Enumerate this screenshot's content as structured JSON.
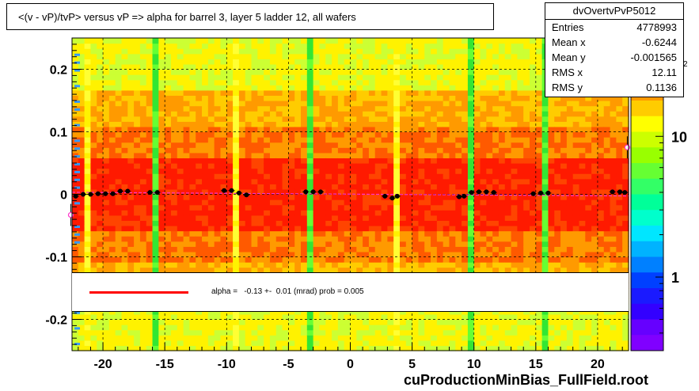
{
  "title": "<(v - vP)/tvP>  versus   vP => alpha for barrel 3, layer 5 ladder 12, all wafers",
  "stats": {
    "name": "dvOvertvPvP5012",
    "rows": [
      {
        "key": "Entries",
        "value": "4778993"
      },
      {
        "key": "Mean x",
        "value": "-0.6244"
      },
      {
        "key": "Mean y",
        "value": "-0.001565"
      },
      {
        "key": "RMS x",
        "value": "12.11"
      },
      {
        "key": "RMS y",
        "value": "0.1136"
      }
    ]
  },
  "fit_legend": {
    "text": "alpha =   -0.13 +-  0.01 (mrad) prob = 0.005",
    "line_color": "#ff0000"
  },
  "footer": "cuProductionMinBias_FullField.root",
  "colorbar_partial_label": "2",
  "chart_data": {
    "type": "heatmap",
    "xlim": [
      -22.5,
      22.5
    ],
    "ylim": [
      -0.25,
      0.25
    ],
    "x_ticks": [
      -20,
      -15,
      -10,
      -5,
      0,
      5,
      10,
      15,
      20
    ],
    "x_tick_labels": [
      "-20",
      "-15",
      "-10",
      "-5",
      "0",
      "5",
      "10",
      "15",
      "20"
    ],
    "y_ticks": [
      -0.2,
      -0.1,
      0,
      0.1,
      0.2
    ],
    "y_tick_labels": [
      "-0.2",
      "-0.1",
      "0",
      "0.1",
      "0.2"
    ],
    "z_scale": "log",
    "colorbar_ticks": [
      1,
      10
    ],
    "colorbar_tick_labels": [
      "1",
      "10"
    ],
    "grid": true,
    "colors": {
      "high": "#ff1a00",
      "mid": "#ff9a00",
      "low": "#fff200",
      "green": "#33e633",
      "pink": "#ff33cc"
    },
    "profile_points": [
      {
        "x": -22.2,
        "y": -0.003
      },
      {
        "x": -21.6,
        "y": 0.0
      },
      {
        "x": -21.0,
        "y": 0.0
      },
      {
        "x": -20.4,
        "y": 0.001
      },
      {
        "x": -19.8,
        "y": 0.001
      },
      {
        "x": -19.2,
        "y": 0.001
      },
      {
        "x": -18.6,
        "y": 0.005
      },
      {
        "x": -18.0,
        "y": 0.005
      },
      {
        "x": -16.2,
        "y": 0.003
      },
      {
        "x": -15.6,
        "y": 0.003
      },
      {
        "x": -10.2,
        "y": 0.006
      },
      {
        "x": -9.6,
        "y": 0.006
      },
      {
        "x": -9.0,
        "y": 0.002
      },
      {
        "x": -8.4,
        "y": -0.001
      },
      {
        "x": -3.6,
        "y": 0.004
      },
      {
        "x": -3.0,
        "y": 0.004
      },
      {
        "x": -2.4,
        "y": 0.004
      },
      {
        "x": 2.8,
        "y": -0.003
      },
      {
        "x": 3.4,
        "y": -0.006
      },
      {
        "x": 3.8,
        "y": -0.003
      },
      {
        "x": 8.8,
        "y": -0.004
      },
      {
        "x": 9.2,
        "y": -0.003
      },
      {
        "x": 9.8,
        "y": 0.003
      },
      {
        "x": 10.4,
        "y": 0.004
      },
      {
        "x": 11.0,
        "y": 0.004
      },
      {
        "x": 11.6,
        "y": 0.003
      },
      {
        "x": 14.8,
        "y": 0.001
      },
      {
        "x": 15.4,
        "y": 0.002
      },
      {
        "x": 16.0,
        "y": 0.002
      },
      {
        "x": 21.2,
        "y": 0.004
      },
      {
        "x": 21.8,
        "y": 0.004
      },
      {
        "x": 22.2,
        "y": 0.003
      }
    ],
    "outlier_points": [
      {
        "x": -22.6,
        "y": -0.033
      },
      {
        "x": 22.4,
        "y": 0.075
      }
    ],
    "fit_line": {
      "slope": -0.00013,
      "intercept": 0.0003
    }
  }
}
